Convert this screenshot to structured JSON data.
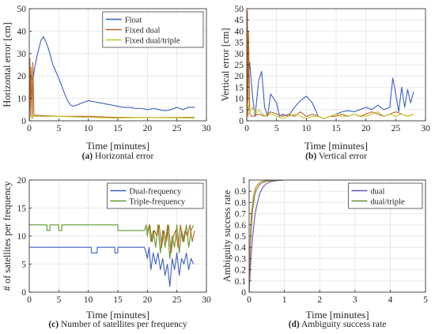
{
  "chart_data": [
    {
      "id": "a",
      "type": "line",
      "caption_letter": "(a)",
      "caption_text": " Horizontal error",
      "xlabel": "Time [minutes]",
      "ylabel": "Horizontal error [cm]",
      "xlim": [
        0,
        30
      ],
      "ylim": [
        0,
        50
      ],
      "xticks": [
        0,
        5,
        10,
        15,
        20,
        25,
        30
      ],
      "yticks": [
        0,
        10,
        20,
        30,
        40,
        50
      ],
      "grid": true,
      "legend": "top-right",
      "series": [
        {
          "name": "Float",
          "color": "#3b5fc4",
          "x": [
            0,
            0.3,
            0.6,
            1,
            1.5,
            2,
            2.4,
            3,
            3.5,
            4,
            5,
            6,
            6.5,
            7,
            7.5,
            8,
            9,
            10,
            11,
            12,
            13,
            14,
            15,
            16,
            17,
            18,
            19,
            20,
            21,
            22,
            23,
            24,
            25,
            26,
            27,
            28
          ],
          "y": [
            14,
            20,
            18,
            25,
            31,
            36,
            37.5,
            34,
            30,
            25,
            19,
            12,
            9,
            7,
            6.5,
            7,
            8,
            9,
            8.5,
            8,
            7.5,
            7,
            6.5,
            6,
            6,
            5.5,
            5.5,
            5,
            5.5,
            5,
            4.5,
            5,
            6,
            5,
            6,
            6
          ]
        },
        {
          "name": "Fixed dual",
          "color": "#b8641c",
          "x": [
            0,
            0.1,
            0.2,
            0.3,
            0.5,
            0.6,
            0.8,
            1,
            5,
            10,
            15,
            20,
            25,
            28
          ],
          "y": [
            0,
            28,
            2,
            24,
            1,
            26,
            2,
            2.5,
            2,
            2,
            1.5,
            1.5,
            1.5,
            1.5
          ]
        },
        {
          "name": "Fixed dual/triple",
          "color": "#c4c42a",
          "x": [
            0,
            0.2,
            0.5,
            1,
            5,
            10,
            15,
            20,
            25,
            28
          ],
          "y": [
            0,
            2,
            2.5,
            2,
            2,
            1.5,
            1.2,
            1.5,
            1.3,
            1.2
          ]
        }
      ]
    },
    {
      "id": "b",
      "type": "line",
      "caption_letter": "(b)",
      "caption_text": " Vertical error",
      "xlabel": "Time [minutes]",
      "ylabel": "Vertical error [cm]",
      "xlim": [
        0,
        30
      ],
      "ylim": [
        0,
        50
      ],
      "xticks": [
        0,
        5,
        10,
        15,
        20,
        25,
        30
      ],
      "yticks": [
        0,
        5,
        10,
        15,
        20,
        25,
        30,
        35,
        40,
        45,
        50
      ],
      "grid": true,
      "legend": "none",
      "series": [
        {
          "name": "",
          "color": "#3b5fc4",
          "x": [
            0,
            0.5,
            1,
            1.4,
            2,
            2.5,
            3,
            3.5,
            4,
            4.5,
            5,
            5.5,
            6,
            7,
            8,
            9,
            10,
            11,
            12,
            13,
            14,
            15,
            16,
            17,
            18,
            19,
            20,
            21,
            22,
            23,
            24,
            24.5,
            25,
            25.5,
            26,
            26.5,
            27,
            27.5,
            28
          ],
          "y": [
            10,
            26,
            10,
            2,
            18,
            22,
            6,
            2,
            12,
            10,
            8,
            2,
            3,
            2,
            6,
            9,
            11,
            8,
            2,
            1,
            2,
            3,
            4,
            4.5,
            4,
            5,
            6,
            5,
            7,
            5,
            6,
            19,
            12,
            4,
            15,
            6,
            14,
            8,
            13
          ]
        },
        {
          "name": "",
          "color": "#b8641c",
          "x": [
            0,
            0.1,
            0.2,
            0.3,
            0.5,
            0.8,
            1,
            2,
            3,
            4,
            5,
            6,
            7,
            8,
            9,
            10,
            11,
            12,
            13,
            14,
            15,
            16,
            17,
            18,
            19,
            20,
            21,
            22,
            23,
            24,
            25,
            26,
            27,
            28
          ],
          "y": [
            0,
            49,
            2,
            40,
            3,
            2,
            2,
            3,
            2,
            4,
            3,
            2,
            3,
            2,
            4,
            2,
            3,
            2,
            1,
            2,
            2,
            3,
            2,
            3,
            2,
            3,
            4,
            3,
            2,
            3,
            4,
            3,
            2,
            3
          ]
        },
        {
          "name": "",
          "color": "#c4c42a",
          "x": [
            0,
            0.2,
            0.5,
            1,
            1.5,
            2,
            3,
            4,
            5,
            6,
            7,
            8,
            9,
            10,
            11,
            12,
            13,
            14,
            15,
            16,
            17,
            18,
            19,
            20,
            21,
            22,
            23,
            24,
            25,
            26,
            27,
            28
          ],
          "y": [
            2,
            8,
            4,
            6,
            3,
            5,
            2,
            3,
            2,
            1,
            2,
            3,
            2,
            1,
            2,
            2,
            1,
            2,
            3,
            2,
            2,
            3,
            2,
            2,
            3,
            4,
            2,
            3,
            2,
            3,
            2,
            3
          ]
        }
      ]
    },
    {
      "id": "c",
      "type": "line",
      "caption_letter": "(c)",
      "caption_text": " Number of satellites per frequency",
      "xlabel": "Time [minutes]",
      "ylabel": "# of satellites per frequency",
      "xlim": [
        0,
        30
      ],
      "ylim": [
        0,
        20
      ],
      "xticks": [
        0,
        5,
        10,
        15,
        20,
        25,
        30
      ],
      "yticks": [
        0,
        5,
        10,
        15,
        20
      ],
      "grid": true,
      "legend": "top-right",
      "series": [
        {
          "name": "Dual-frequency",
          "color": "#3b5fc4",
          "x": [
            0,
            10.5,
            10.5,
            11.5,
            11.5,
            14.5,
            14.5,
            15,
            15,
            19.5,
            19.8,
            20,
            20.3,
            20.6,
            21,
            21.4,
            21.8,
            22.2,
            22.6,
            23,
            23.4,
            23.8,
            24.2,
            24.6,
            25,
            25.4,
            25.8,
            26.2,
            26.6,
            27,
            27.4,
            27.8
          ],
          "y": [
            8,
            8,
            7,
            7,
            8,
            8,
            7,
            7,
            8,
            8,
            7,
            6,
            8,
            4,
            7,
            5,
            7,
            4,
            6,
            3,
            5,
            1,
            6,
            4,
            7,
            3,
            6,
            5,
            7,
            4,
            6,
            5
          ]
        },
        {
          "name": "Triple-frequency",
          "color": "#5a9a2a",
          "x": [
            0,
            3,
            3,
            3.5,
            3.5,
            5,
            5,
            5.5,
            5.5,
            15,
            15,
            19.5,
            19.8,
            20,
            20.3,
            20.6,
            21,
            21.4,
            21.8,
            22.2,
            22.6,
            23,
            23.4,
            23.8,
            24.2,
            24.6,
            25,
            25.4,
            25.8,
            26.2,
            26.6,
            27,
            27.4,
            27.8
          ],
          "y": [
            12,
            12,
            11,
            11,
            12,
            12,
            11,
            11,
            12,
            12,
            11,
            11,
            12,
            10,
            12,
            9,
            11,
            8,
            12,
            7,
            11,
            8,
            12,
            6,
            10,
            8,
            12,
            7,
            11,
            9,
            12,
            8,
            11,
            12
          ]
        },
        {
          "name": "",
          "color": "#b8641c",
          "x": [
            20,
            20.4,
            20.8,
            21.2,
            21.6,
            22,
            22.4,
            22.8,
            23.2,
            23.6,
            24,
            24.4,
            24.8,
            25.2,
            25.6,
            26,
            26.4,
            26.8,
            27.2,
            27.6,
            28
          ],
          "y": [
            11,
            12,
            9,
            11,
            10,
            12,
            8,
            11,
            9,
            12,
            7,
            10,
            11,
            8,
            12,
            9,
            11,
            10,
            12,
            9,
            11
          ]
        }
      ]
    },
    {
      "id": "d",
      "type": "line",
      "caption_letter": "(d)",
      "caption_text": " Ambiguity success rate",
      "xlabel": "Time [minutes]",
      "ylabel": "Ambiguity success rate",
      "xlim": [
        0,
        5
      ],
      "ylim": [
        0,
        1
      ],
      "xticks": [
        0,
        1,
        2,
        3,
        4,
        5
      ],
      "yticks": [
        0,
        0.1,
        0.2,
        0.3,
        0.4,
        0.5,
        0.6,
        0.7,
        0.8,
        0.9,
        1
      ],
      "grid": true,
      "legend": "top-right",
      "series": [
        {
          "name": "dual",
          "color": "#6a4cc4",
          "x": [
            0,
            0.05,
            0.1,
            0.15,
            0.2,
            0.3,
            0.4,
            0.5,
            0.6,
            0.8,
            1,
            1.5,
            5
          ],
          "y": [
            0,
            0.3,
            0.5,
            0.65,
            0.75,
            0.88,
            0.94,
            0.97,
            0.985,
            0.995,
            1,
            1,
            1
          ]
        },
        {
          "name": "dual/triple",
          "color": "#6a8a2a",
          "x": [
            0,
            0.03,
            0.07,
            0.1,
            0.15,
            0.2,
            0.3,
            0.4,
            0.5,
            0.7,
            1,
            5
          ],
          "y": [
            0,
            0.4,
            0.62,
            0.74,
            0.85,
            0.91,
            0.96,
            0.98,
            0.99,
            0.998,
            1,
            1
          ]
        },
        {
          "name": "",
          "color": "#c47a2a",
          "x": [
            0,
            0.03,
            0.06,
            0.1,
            0.13,
            0.17,
            0.22,
            0.3,
            0.4,
            0.6,
            1,
            5
          ],
          "y": [
            0,
            0.45,
            0.68,
            0.8,
            0.87,
            0.92,
            0.95,
            0.98,
            0.99,
            0.999,
            1,
            1
          ]
        }
      ]
    }
  ]
}
